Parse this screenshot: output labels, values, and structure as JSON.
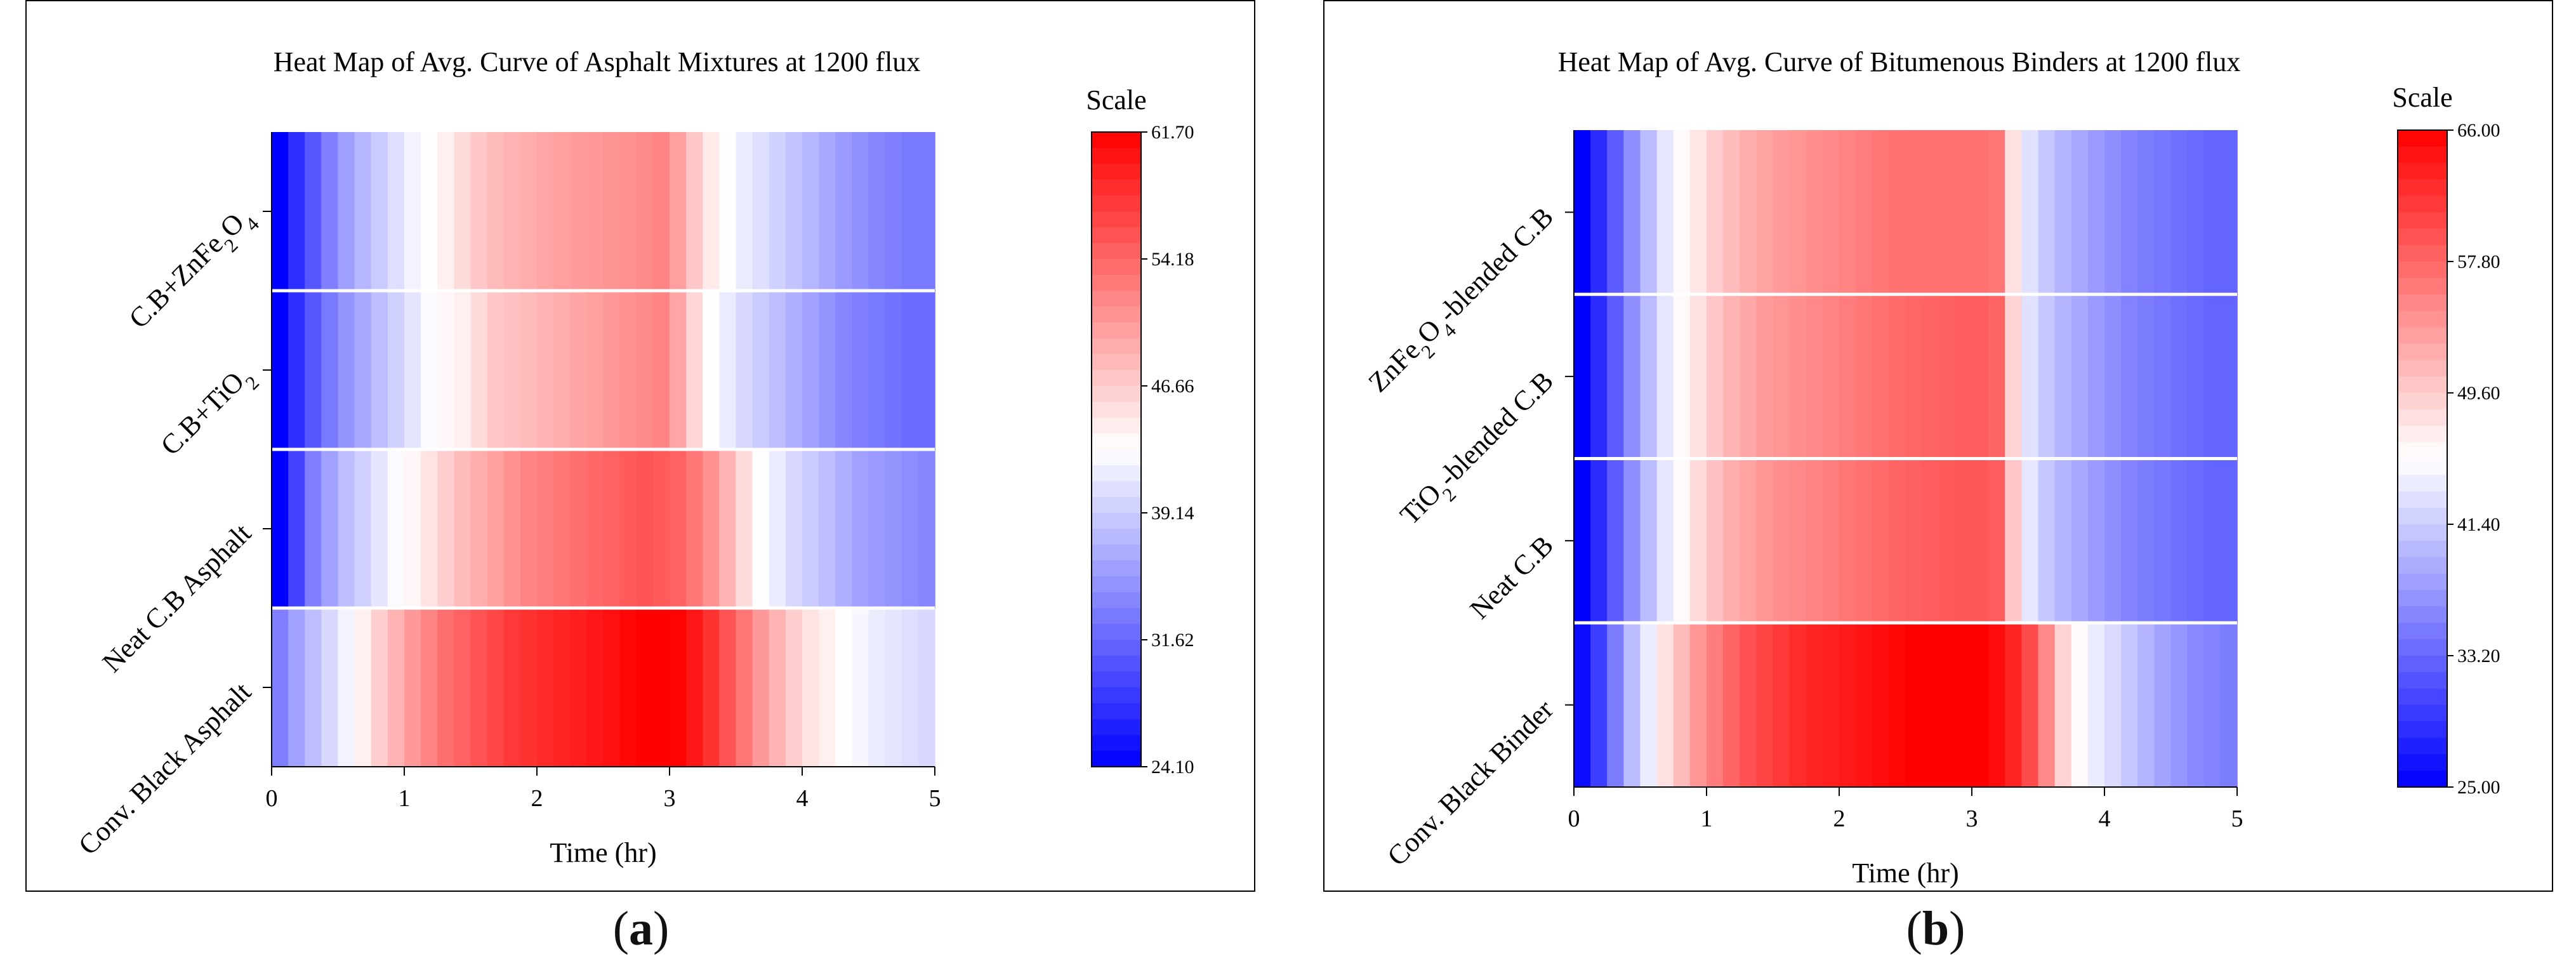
{
  "chart_data": [
    {
      "type": "heatmap",
      "panel_label": "a",
      "title": "Heat Map of Avg. Curve of Asphalt Mixtures at 1200 flux",
      "xlabel": "Time (hr)",
      "ylabel": "",
      "xlim": [
        0,
        5
      ],
      "x_ticks": [
        "0",
        "1",
        "2",
        "3",
        "4",
        "5"
      ],
      "rows": [
        "C.B+ZnFe2O4",
        "C.B+TiO2",
        "Neat C.B Asphalt",
        "Conv. Black Asphalt"
      ],
      "row_labels": [
        {
          "parts": [
            {
              "t": "C.B+ZnFe"
            },
            {
              "t": "2",
              "sub": true
            },
            {
              "t": "O"
            },
            {
              "t": "4",
              "sub": true
            }
          ]
        },
        {
          "parts": [
            {
              "t": "C.B+TiO"
            },
            {
              "t": "2",
              "sub": true
            }
          ]
        },
        {
          "parts": [
            {
              "t": "Neat C.B Asphalt"
            }
          ]
        },
        {
          "parts": [
            {
              "t": "Conv. Black Asphalt"
            }
          ]
        }
      ],
      "x": [
        0.0,
        0.125,
        0.25,
        0.375,
        0.5,
        0.625,
        0.75,
        0.875,
        1.0,
        1.125,
        1.25,
        1.375,
        1.5,
        1.625,
        1.75,
        1.875,
        2.0,
        2.125,
        2.25,
        2.375,
        2.5,
        2.625,
        2.75,
        2.875,
        3.0,
        3.125,
        3.25,
        3.375,
        3.5,
        3.625,
        3.75,
        3.875,
        4.0,
        4.125,
        4.25,
        4.375,
        4.5,
        4.625,
        4.75,
        4.875
      ],
      "values": [
        [
          24.1,
          27.5,
          30.5,
          33.5,
          35.8,
          37.5,
          39.0,
          40.5,
          42.0,
          43.0,
          44.0,
          45.5,
          47.0,
          48.0,
          48.5,
          49.0,
          49.5,
          50.0,
          50.3,
          50.5,
          50.8,
          51.0,
          51.5,
          52.0,
          50.0,
          47.0,
          44.5,
          43.0,
          41.5,
          40.5,
          39.5,
          38.5,
          37.5,
          36.5,
          35.5,
          34.8,
          34.0,
          33.5,
          33.0,
          33.0
        ],
        [
          24.1,
          27.5,
          30.5,
          33.0,
          35.0,
          36.5,
          38.0,
          39.5,
          41.0,
          42.5,
          43.5,
          44.0,
          45.5,
          47.0,
          47.5,
          48.0,
          48.5,
          49.0,
          49.5,
          50.0,
          50.5,
          51.0,
          51.5,
          52.0,
          49.5,
          46.0,
          43.0,
          41.5,
          40.0,
          39.0,
          38.0,
          37.0,
          36.0,
          35.0,
          34.0,
          33.5,
          33.0,
          32.5,
          32.0,
          32.0
        ],
        [
          24.1,
          29.0,
          33.5,
          36.0,
          38.0,
          39.5,
          41.0,
          42.5,
          43.5,
          45.0,
          46.5,
          48.0,
          49.0,
          50.0,
          51.0,
          52.0,
          52.5,
          53.0,
          53.5,
          54.0,
          54.5,
          55.0,
          55.5,
          55.0,
          54.5,
          53.0,
          51.0,
          48.5,
          45.5,
          43.0,
          41.5,
          40.0,
          39.0,
          38.0,
          37.0,
          36.0,
          35.5,
          35.0,
          34.5,
          34.0
        ],
        [
          33.5,
          36.0,
          38.0,
          40.0,
          42.0,
          44.0,
          46.5,
          48.5,
          50.5,
          52.0,
          53.5,
          54.5,
          55.5,
          56.5,
          57.5,
          58.0,
          58.5,
          59.0,
          59.5,
          60.0,
          60.5,
          61.2,
          61.7,
          61.7,
          61.5,
          60.0,
          58.0,
          55.5,
          53.0,
          50.5,
          48.5,
          46.5,
          45.0,
          44.0,
          43.0,
          42.3,
          41.5,
          41.0,
          40.5,
          40.0
        ]
      ],
      "colorbar": {
        "title": "Scale",
        "min": 24.1,
        "max": 61.7,
        "ticks": [
          "61.70",
          "54.18",
          "46.66",
          "39.14",
          "31.62",
          "24.10"
        ]
      },
      "colors": {
        "low": "#0000ff",
        "mid": "#ffffff",
        "high": "#ff0000"
      }
    },
    {
      "type": "heatmap",
      "panel_label": "b",
      "title": "Heat Map of Avg. Curve of Bitumenous Binders at 1200 flux",
      "xlabel": "Time (hr)",
      "ylabel": "",
      "xlim": [
        0,
        5
      ],
      "x_ticks": [
        "0",
        "1",
        "2",
        "3",
        "4",
        "5"
      ],
      "rows": [
        "ZnFe2O4-blended C.B",
        "TiO2-blended C.B",
        "Neat C.B",
        "Conv. Black Binder"
      ],
      "row_labels": [
        {
          "parts": [
            {
              "t": "ZnFe"
            },
            {
              "t": "2",
              "sub": true
            },
            {
              "t": "O"
            },
            {
              "t": "4",
              "sub": true
            },
            {
              "t": "-blended C.B"
            }
          ]
        },
        {
          "parts": [
            {
              "t": "TiO"
            },
            {
              "t": "2",
              "sub": true
            },
            {
              "t": "-blended C.B"
            }
          ]
        },
        {
          "parts": [
            {
              "t": "Neat C.B"
            }
          ]
        },
        {
          "parts": [
            {
              "t": "Conv. Black Binder"
            }
          ]
        }
      ],
      "x": [
        0.0,
        0.125,
        0.25,
        0.375,
        0.5,
        0.625,
        0.75,
        0.875,
        1.0,
        1.125,
        1.25,
        1.375,
        1.5,
        1.625,
        1.75,
        1.875,
        2.0,
        2.125,
        2.25,
        2.375,
        2.5,
        2.625,
        2.75,
        2.875,
        3.0,
        3.125,
        3.25,
        3.375,
        3.5,
        3.625,
        3.75,
        3.875,
        4.0,
        4.125,
        4.25,
        4.375,
        4.5,
        4.625,
        4.75,
        4.875
      ],
      "values": [
        [
          25.0,
          28.5,
          32.5,
          36.5,
          40.0,
          43.5,
          46.0,
          47.5,
          49.5,
          51.0,
          52.0,
          53.0,
          53.5,
          54.0,
          54.5,
          55.0,
          55.5,
          56.0,
          56.5,
          56.8,
          57.0,
          57.0,
          57.0,
          57.0,
          57.0,
          56.5,
          48.0,
          43.0,
          41.0,
          39.5,
          38.5,
          37.5,
          36.5,
          35.5,
          35.0,
          34.5,
          34.0,
          33.5,
          33.0,
          33.0
        ],
        [
          25.0,
          28.5,
          32.5,
          36.5,
          40.0,
          43.5,
          46.0,
          48.0,
          50.0,
          51.5,
          52.5,
          53.5,
          54.0,
          54.5,
          55.0,
          55.5,
          56.0,
          56.5,
          57.0,
          57.5,
          57.8,
          58.0,
          58.2,
          58.5,
          58.5,
          58.0,
          49.0,
          43.0,
          41.0,
          39.5,
          38.5,
          37.5,
          36.5,
          35.5,
          35.0,
          34.5,
          34.0,
          33.5,
          33.0,
          33.0
        ],
        [
          25.0,
          28.5,
          32.5,
          36.5,
          40.0,
          43.5,
          46.0,
          48.5,
          50.5,
          52.0,
          53.0,
          54.0,
          54.5,
          55.0,
          55.5,
          56.0,
          56.5,
          57.0,
          57.5,
          58.0,
          58.2,
          58.5,
          58.8,
          59.0,
          59.0,
          58.5,
          50.0,
          43.5,
          41.0,
          39.5,
          38.5,
          37.5,
          36.5,
          35.5,
          35.0,
          34.5,
          34.0,
          33.5,
          33.0,
          33.0
        ],
        [
          26.0,
          30.0,
          35.0,
          40.0,
          44.0,
          48.0,
          51.0,
          54.0,
          56.0,
          58.0,
          59.5,
          60.5,
          61.5,
          62.5,
          63.0,
          63.5,
          64.0,
          64.5,
          65.0,
          65.5,
          66.0,
          66.0,
          66.0,
          66.0,
          66.0,
          65.0,
          63.0,
          60.0,
          55.0,
          49.0,
          46.0,
          44.0,
          42.5,
          41.0,
          39.5,
          38.0,
          37.0,
          36.0,
          35.5,
          35.0
        ]
      ],
      "colorbar": {
        "title": "Scale",
        "min": 25.0,
        "max": 66.0,
        "ticks": [
          "66.00",
          "57.80",
          "49.60",
          "41.40",
          "33.20",
          "25.00"
        ]
      },
      "colors": {
        "low": "#0000ff",
        "mid": "#ffffff",
        "high": "#ff0000"
      }
    }
  ]
}
